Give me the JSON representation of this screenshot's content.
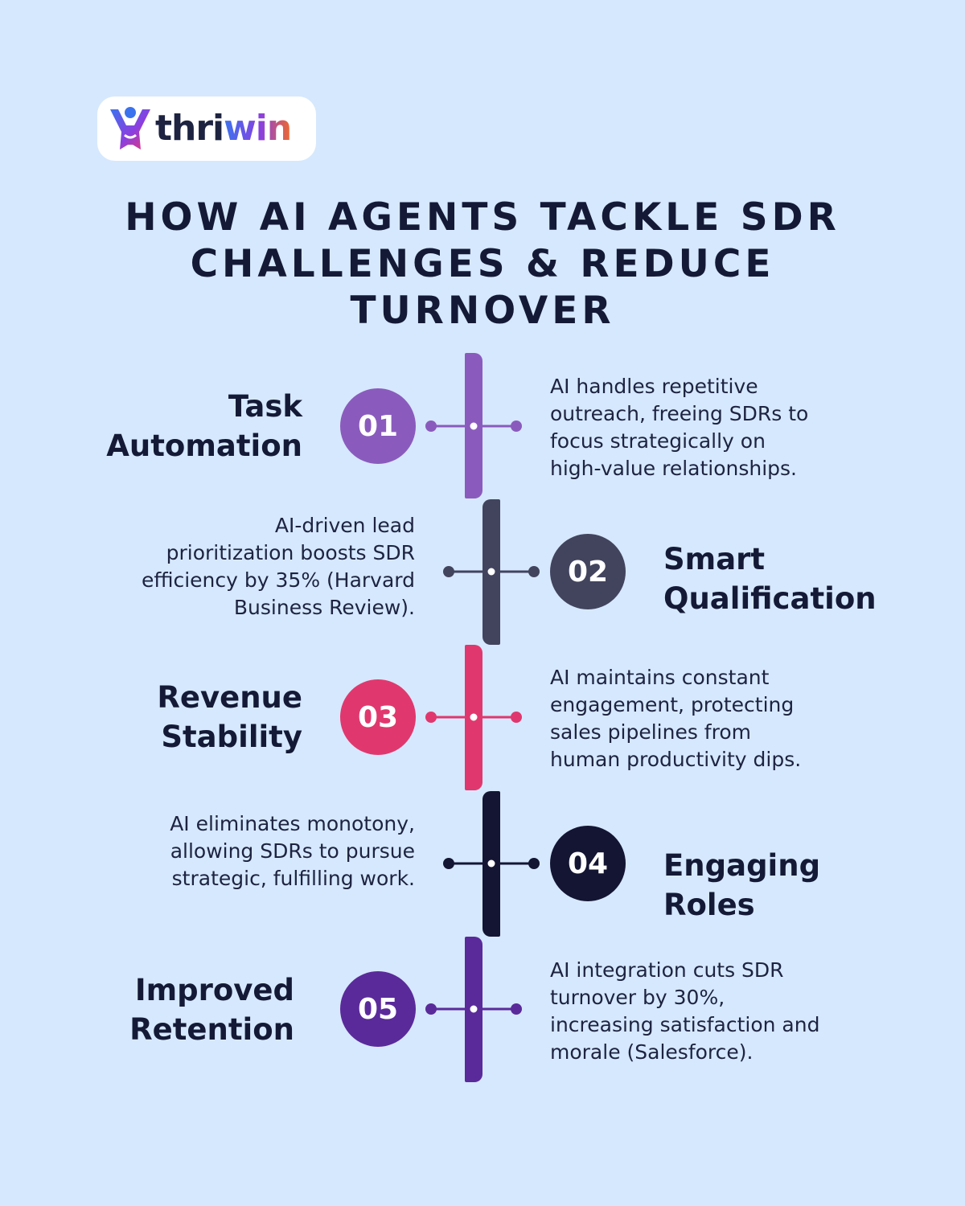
{
  "brand": {
    "name_part1": "thri",
    "name_part2": "win"
  },
  "headline": {
    "lines": [
      "HOW AI AGENTS TACKLE SDR",
      "CHALLENGES & REDUCE",
      "TURNOVER"
    ]
  },
  "colors": {
    "background": "#d6e8fd",
    "step1": "#8a5bbd",
    "step2": "#42445e",
    "step3": "#e0386e",
    "step4": "#141533",
    "step5": "#5a2a9a"
  },
  "steps": [
    {
      "number": "01",
      "title_lines": [
        "Task",
        "Automation"
      ],
      "description_lines": [
        "AI handles repetitive",
        "outreach, freeing SDRs to",
        "focus strategically on",
        "high-value relationships."
      ]
    },
    {
      "number": "02",
      "title_lines": [
        "Smart",
        "Qualification"
      ],
      "description_lines": [
        "AI-driven lead",
        "prioritization boosts SDR",
        "efficiency by 35% (Harvard",
        "Business Review)."
      ]
    },
    {
      "number": "03",
      "title_lines": [
        "Revenue",
        "Stability"
      ],
      "description_lines": [
        "AI maintains constant",
        "engagement, protecting",
        "sales pipelines from",
        "human productivity dips."
      ]
    },
    {
      "number": "04",
      "title_lines": [
        "Engaging",
        "Roles"
      ],
      "description_lines": [
        "AI eliminates monotony,",
        "allowing SDRs to pursue",
        "strategic, fulfilling work."
      ]
    },
    {
      "number": "05",
      "title_lines": [
        "Improved",
        "Retention"
      ],
      "description_lines": [
        "AI integration cuts SDR",
        "turnover by 30%,",
        "increasing satisfaction and",
        "morale (Salesforce)."
      ]
    }
  ]
}
